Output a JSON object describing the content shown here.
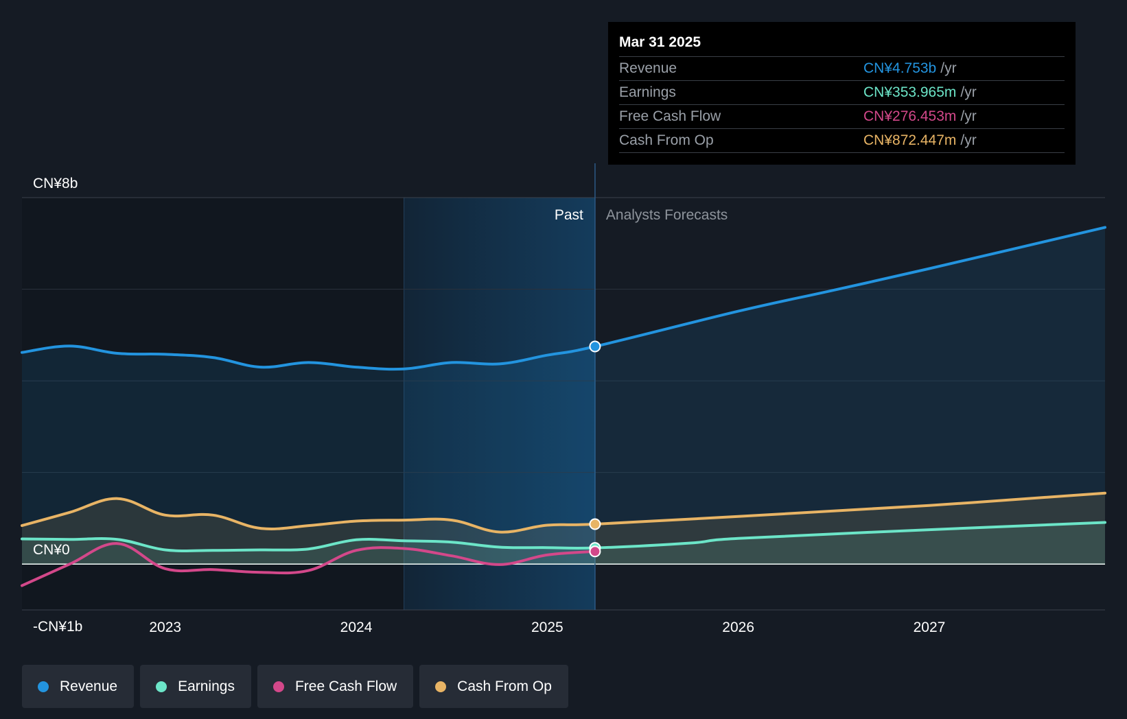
{
  "chart_data": {
    "type": "line",
    "x_unit": "year",
    "xlim": [
      2022.25,
      2027.92
    ],
    "ylim": [
      -1,
      8
    ],
    "y_unit": "CN¥ billions",
    "y_ticks": [
      {
        "value": 8,
        "label": "CN¥8b"
      },
      {
        "value": 0,
        "label": "CN¥0"
      },
      {
        "value": -1,
        "label": "-CN¥1b"
      }
    ],
    "x_ticks": [
      {
        "value": 2023,
        "label": "2023"
      },
      {
        "value": 2024,
        "label": "2024"
      },
      {
        "value": 2025,
        "label": "2025"
      },
      {
        "value": 2026,
        "label": "2026"
      },
      {
        "value": 2027,
        "label": "2027"
      }
    ],
    "past_label": "Past",
    "forecast_label": "Analysts Forecasts",
    "divider_x": 2025.25,
    "highlight_start_x": 2024.25,
    "series": [
      {
        "name": "Revenue",
        "color": "#2394df",
        "fill": true,
        "x": [
          2022.25,
          2022.5,
          2022.75,
          2023.0,
          2023.25,
          2023.5,
          2023.75,
          2024.0,
          2024.25,
          2024.5,
          2024.75,
          2025.0,
          2025.25,
          2026.0,
          2026.5,
          2027.0,
          2027.92
        ],
        "y": [
          4.62,
          4.76,
          4.6,
          4.58,
          4.51,
          4.3,
          4.4,
          4.3,
          4.26,
          4.4,
          4.37,
          4.56,
          4.75,
          5.52,
          5.98,
          6.45,
          7.35
        ]
      },
      {
        "name": "Earnings",
        "color": "#6ce5c8",
        "fill": true,
        "x": [
          2022.25,
          2022.5,
          2022.75,
          2023.0,
          2023.25,
          2023.5,
          2023.75,
          2024.0,
          2024.25,
          2024.5,
          2024.75,
          2025.0,
          2025.25,
          2025.75,
          2026.0,
          2027.0,
          2027.92
        ],
        "y": [
          0.55,
          0.54,
          0.54,
          0.31,
          0.3,
          0.31,
          0.33,
          0.53,
          0.51,
          0.48,
          0.37,
          0.36,
          0.354,
          0.46,
          0.56,
          0.75,
          0.91
        ]
      },
      {
        "name": "Free Cash Flow",
        "color": "#d3488a",
        "fill": false,
        "x": [
          2022.25,
          2022.5,
          2022.75,
          2023.0,
          2023.25,
          2023.5,
          2023.75,
          2024.0,
          2024.25,
          2024.5,
          2024.75,
          2025.0,
          2025.25
        ],
        "y": [
          -0.47,
          0.0,
          0.45,
          -0.1,
          -0.12,
          -0.18,
          -0.14,
          0.3,
          0.34,
          0.18,
          -0.01,
          0.2,
          0.276
        ]
      },
      {
        "name": "Cash From Op",
        "color": "#e8b465",
        "fill": true,
        "x": [
          2022.25,
          2022.5,
          2022.75,
          2023.0,
          2023.25,
          2023.5,
          2023.75,
          2024.0,
          2024.25,
          2024.5,
          2024.75,
          2025.0,
          2025.25,
          2026.0,
          2027.0,
          2027.92
        ],
        "y": [
          0.84,
          1.13,
          1.43,
          1.07,
          1.07,
          0.78,
          0.84,
          0.94,
          0.96,
          0.96,
          0.7,
          0.85,
          0.872,
          1.04,
          1.28,
          1.55
        ]
      }
    ]
  },
  "tooltip": {
    "date": "Mar 31 2025",
    "unit": "/yr",
    "rows": [
      {
        "label": "Revenue",
        "value": "CN¥4.753b",
        "color": "#2394df"
      },
      {
        "label": "Earnings",
        "value": "CN¥353.965m",
        "color": "#6ce5c8"
      },
      {
        "label": "Free Cash Flow",
        "value": "CN¥276.453m",
        "color": "#d3488a"
      },
      {
        "label": "Cash From Op",
        "value": "CN¥872.447m",
        "color": "#e8b465"
      }
    ]
  },
  "legend": [
    {
      "label": "Revenue",
      "color": "#2394df"
    },
    {
      "label": "Earnings",
      "color": "#6ce5c8"
    },
    {
      "label": "Free Cash Flow",
      "color": "#d3488a"
    },
    {
      "label": "Cash From Op",
      "color": "#e8b465"
    }
  ]
}
